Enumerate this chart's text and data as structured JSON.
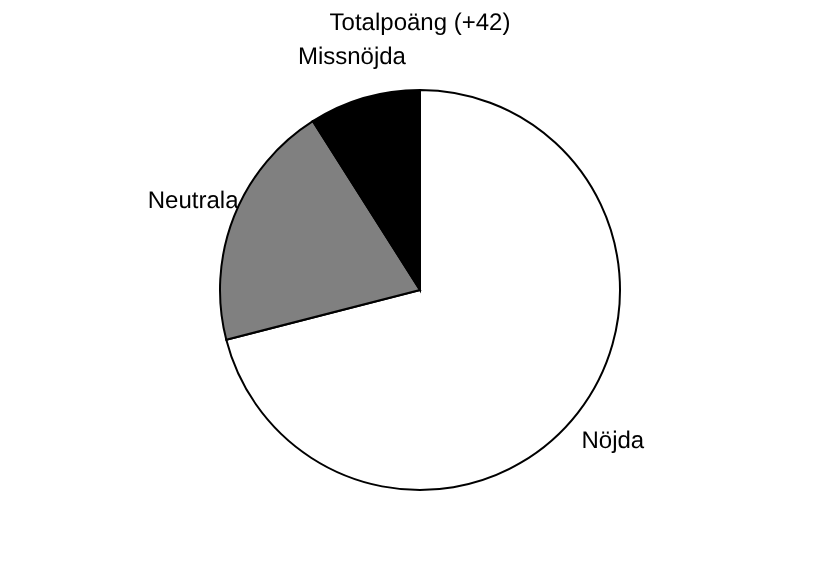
{
  "chart_data": {
    "type": "pie",
    "title": "Totalpoäng (+42)",
    "categories": [
      "Nöjda",
      "Neutrala",
      "Missnöjda"
    ],
    "values": [
      71,
      20,
      9
    ],
    "colors": [
      "#ffffff",
      "#808080",
      "#000000"
    ]
  }
}
